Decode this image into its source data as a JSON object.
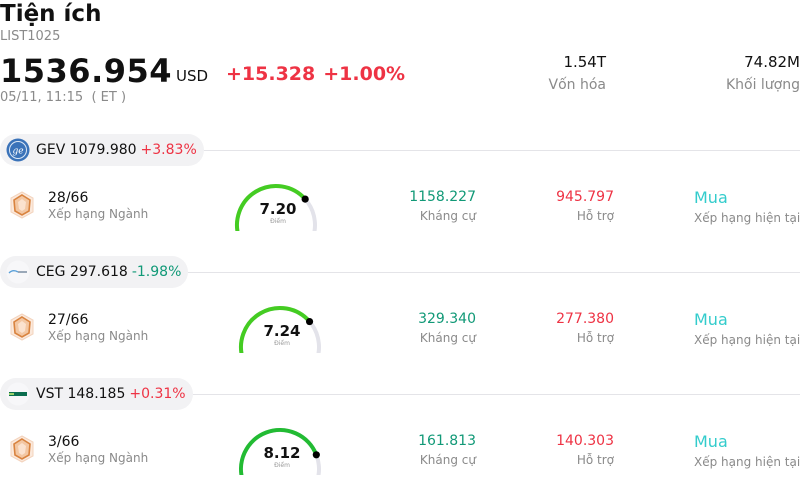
{
  "header": {
    "title": "Tiện ích",
    "symbol": "LIST1025",
    "price": "1536.954",
    "currency": "USD",
    "change": "+15.328",
    "change_pct": "+1.00%",
    "timestamp": "05/11, 11:15  ( ET )",
    "market_cap_value": "1.54T",
    "market_cap_label": "Vốn hóa",
    "volume_value": "74.82M",
    "volume_label": "Khối lượng"
  },
  "colors": {
    "up": "#ee3344",
    "down": "#119977",
    "rating": "#33cccc",
    "muted": "#8a8a8a"
  },
  "stocks": [
    {
      "ticker": "GEV",
      "price": "1079.980",
      "change_pct": "+3.83%",
      "rank": "28/66",
      "rank_label": "Xếp hạng Ngành",
      "score": "7.20",
      "score_label": "Điểm",
      "score_fraction": 0.72,
      "resistance": "1158.227",
      "resistance_label": "Kháng cự",
      "support": "945.797",
      "support_label": "Hỗ trợ",
      "rating": "Mua",
      "rating_label": "Xếp hạng hiện tại",
      "logo_icon": "ge-logo-icon"
    },
    {
      "ticker": "CEG",
      "price": "297.618",
      "change_pct": "-1.98%",
      "rank": "27/66",
      "rank_label": "Xếp hạng Ngành",
      "score": "7.24",
      "score_label": "Điểm",
      "score_fraction": 0.724,
      "resistance": "329.340",
      "resistance_label": "Kháng cự",
      "support": "277.380",
      "support_label": "Hỗ trợ",
      "rating": "Mua",
      "rating_label": "Xếp hạng hiện tại",
      "logo_icon": "constellation-logo-icon"
    },
    {
      "ticker": "VST",
      "price": "148.185",
      "change_pct": "+0.31%",
      "rank": "3/66",
      "rank_label": "Xếp hạng Ngành",
      "score": "8.12",
      "score_label": "Điểm",
      "score_fraction": 0.812,
      "resistance": "161.813",
      "resistance_label": "Kháng cự",
      "support": "140.303",
      "support_label": "Hỗ trợ",
      "rating": "Mua",
      "rating_label": "Xếp hạng hiện tại",
      "logo_icon": "vistra-logo-icon"
    }
  ]
}
